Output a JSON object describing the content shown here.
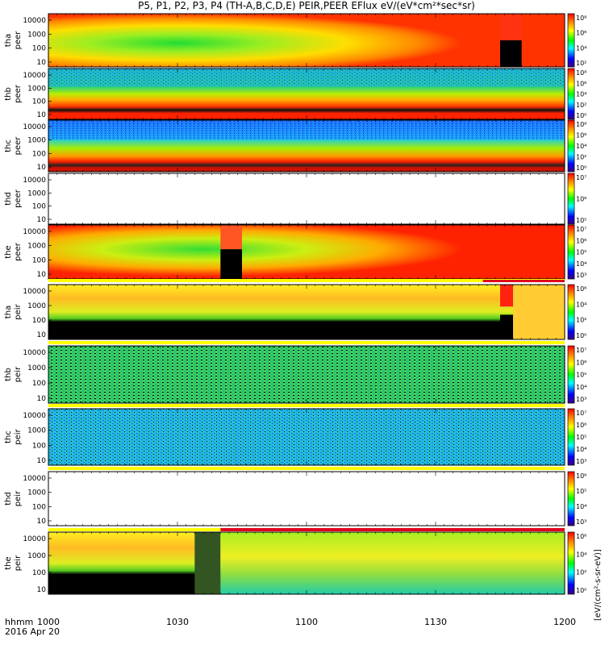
{
  "chart_data": {
    "type": "heatmap",
    "title": "P5, P1, P2, P3, P4 (TH-A,B,C,D,E) PEIR,PEER EFlux eV/(eV*cm²*sec*sr)",
    "x_axis_label": [
      "hhmm",
      "2016 Apr 20"
    ],
    "x_ticks": [
      "1000",
      "1030",
      "1100",
      "1130",
      "1200"
    ],
    "x_range_minutes": [
      600,
      720
    ],
    "y_ticks": [
      "10000",
      "1000",
      "100",
      "10"
    ],
    "y_scale": "log",
    "colorbar_label": "[eV/(cm²-s-sr-eV)]",
    "panels": [
      {
        "probe": "tha",
        "species": "peer",
        "label_top": "tha",
        "label_bottom": "peer",
        "cbar_ticks": [
          "10⁸",
          "10⁶",
          "10⁴",
          "10²"
        ],
        "pattern": "fill-hot"
      },
      {
        "probe": "thb",
        "species": "peer",
        "label_top": "thb",
        "label_bottom": "peer",
        "cbar_ticks": [
          "10⁸",
          "10⁶",
          "10⁴",
          "10²",
          "10⁰"
        ],
        "pattern": "bands-green"
      },
      {
        "probe": "thc",
        "species": "peer",
        "label_top": "thc",
        "label_bottom": "peer",
        "cbar_ticks": [
          "10⁸",
          "10⁶",
          "10⁴",
          "10²",
          "10⁰"
        ],
        "pattern": "bands-blue"
      },
      {
        "probe": "thd",
        "species": "peer",
        "label_top": "thd",
        "label_bottom": "peer",
        "cbar_ticks": [
          "10⁷",
          "10⁶",
          "10⁵"
        ],
        "pattern": "empty"
      },
      {
        "probe": "the",
        "species": "peer",
        "label_top": "the",
        "label_bottom": "peer",
        "cbar_ticks": [
          "10⁷",
          "10⁶",
          "10⁵",
          "10⁴",
          "10³"
        ],
        "pattern": "fill-hot-gap"
      },
      {
        "probe": "tha",
        "species": "peir",
        "label_top": "tha",
        "label_bottom": "peir",
        "cbar_ticks": [
          "10⁶",
          "10⁴",
          "10²",
          "10⁰"
        ],
        "pattern": "ion-yellow"
      },
      {
        "probe": "thb",
        "species": "peir",
        "label_top": "thb",
        "label_bottom": "peir",
        "cbar_ticks": [
          "10⁷",
          "10⁶",
          "10⁵",
          "10⁴",
          "10³"
        ],
        "pattern": "noise-green"
      },
      {
        "probe": "thc",
        "species": "peir",
        "label_top": "thc",
        "label_bottom": "peir",
        "cbar_ticks": [
          "10⁷",
          "10⁶",
          "10⁵",
          "10⁴",
          "10³"
        ],
        "pattern": "noise-cyan"
      },
      {
        "probe": "thd",
        "species": "peir",
        "label_top": "thd",
        "label_bottom": "peir",
        "cbar_ticks": [
          "10⁶",
          "10⁵",
          "10⁴",
          "10³"
        ],
        "pattern": "empty"
      },
      {
        "probe": "the",
        "species": "peir",
        "label_top": "the",
        "label_bottom": "peir",
        "cbar_ticks": [
          "10⁶",
          "10⁴",
          "10²",
          "10⁰"
        ],
        "pattern": "ion-split"
      }
    ]
  },
  "colors": {
    "mode_bar_yellow": "#ffff00",
    "mode_bar_red": "#e0001a",
    "fill_value": "#000000"
  }
}
